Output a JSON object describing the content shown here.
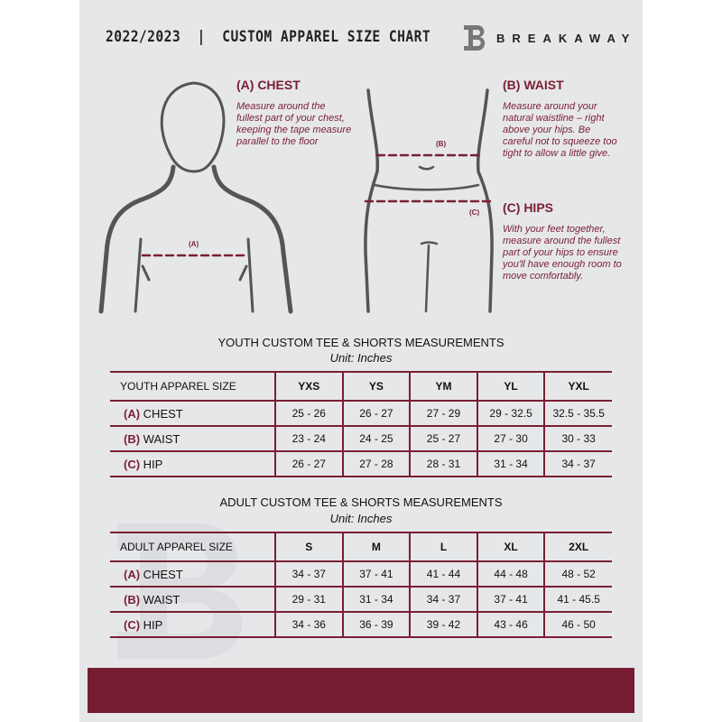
{
  "header": {
    "title": "2022/2023  |  CUSTOM APPAREL SIZE CHART",
    "brand": "BREAKAWAY",
    "logo_letter": "B"
  },
  "guide": {
    "chest": {
      "heading": "(A) CHEST",
      "label": "(A)",
      "text": "Measure around the fullest part of your chest, keeping the tape measure parallel to the floor"
    },
    "waist": {
      "heading": "(B) WAIST",
      "label": "(B)",
      "text": "Measure around your natural waistline – right above your hips. Be careful not to squeeze too tight to allow a little give."
    },
    "hips": {
      "heading": "(C) HIPS",
      "label": "(C)",
      "text": "With your feet together, measure around the fullest part of your hips to ensure you'll have enough room to move comfortably."
    }
  },
  "youth": {
    "title": "YOUTH CUSTOM TEE & SHORTS MEASUREMENTS",
    "unit": "Unit: Inches",
    "size_label": "YOUTH APPAREL SIZE",
    "sizes": [
      "YXS",
      "YS",
      "YM",
      "YL",
      "YXL"
    ],
    "rows": [
      {
        "code": "(A)",
        "name": "CHEST",
        "values": [
          "25 - 26",
          "26 - 27",
          "27 - 29",
          "29 - 32.5",
          "32.5 - 35.5"
        ]
      },
      {
        "code": "(B)",
        "name": "WAIST",
        "values": [
          "23 - 24",
          "24 - 25",
          "25 - 27",
          "27 - 30",
          "30 - 33"
        ]
      },
      {
        "code": "(C)",
        "name": "HIP",
        "values": [
          "26 - 27",
          "27 - 28",
          "28 - 31",
          "31 - 34",
          "34 - 37"
        ]
      }
    ]
  },
  "adult": {
    "title": "ADULT CUSTOM TEE & SHORTS MEASUREMENTS",
    "unit": "Unit: Inches",
    "size_label": "ADULT APPAREL SIZE",
    "sizes": [
      "S",
      "M",
      "L",
      "XL",
      "2XL"
    ],
    "rows": [
      {
        "code": "(A)",
        "name": "CHEST",
        "values": [
          "34 - 37",
          "37 - 41",
          "41 - 44",
          "44 - 48",
          "48 - 52"
        ]
      },
      {
        "code": "(B)",
        "name": "WAIST",
        "values": [
          "29 - 31",
          "31 - 34",
          "34 - 37",
          "37 - 41",
          "41 - 45.5"
        ]
      },
      {
        "code": "(C)",
        "name": "HIP",
        "values": [
          "34 - 36",
          "36 - 39",
          "39 - 42",
          "43 - 46",
          "46 - 50"
        ]
      }
    ]
  },
  "colors": {
    "accent": "#7a1f33",
    "background": "#e6e7e9"
  }
}
